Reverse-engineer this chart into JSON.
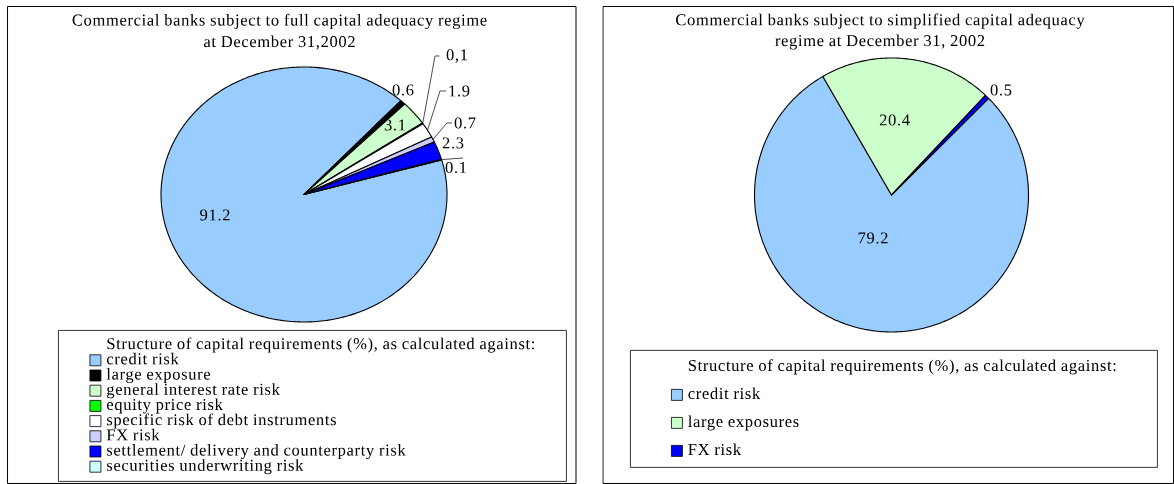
{
  "chart_data": [
    {
      "type": "pie",
      "title": "Commercial banks subject to full capital adequacy regime at December 31,2002",
      "legend_title": "Structure of capital requirements (%), as calculated against:",
      "categories": [
        "credit risk",
        "large exposure",
        "general interest rate risk",
        "equity price risk",
        "specific risk of debt instruments",
        "FX risk",
        "settlement/ delivery and counterparty risk",
        "securities underwriting risk"
      ],
      "values": [
        91.2,
        0.6,
        3.1,
        0.1,
        1.9,
        0.7,
        2.3,
        0.1
      ],
      "colors": [
        "#99ccff",
        "#000000",
        "#ccffcc",
        "#00ff00",
        "#ffffff",
        "#ccccff",
        "#0000ff",
        "#ccffff"
      ],
      "value_labels": [
        "91.2",
        "0.6",
        "3.1",
        "0,1",
        "1.9",
        "0.7",
        "2.3",
        "0.1"
      ],
      "legend": "bottom"
    },
    {
      "type": "pie",
      "title": "Commercial banks subject to simplified capital adequacy regime at December 31, 2002",
      "legend_title": "Structure of capital requirements (%), as calculated against:",
      "categories": [
        "credit risk",
        "large exposures",
        "FX risk"
      ],
      "values": [
        79.2,
        20.4,
        0.5
      ],
      "colors": [
        "#99ccff",
        "#ccffcc",
        "#0000ff"
      ],
      "data_labels": true,
      "legend": "bottom"
    }
  ]
}
